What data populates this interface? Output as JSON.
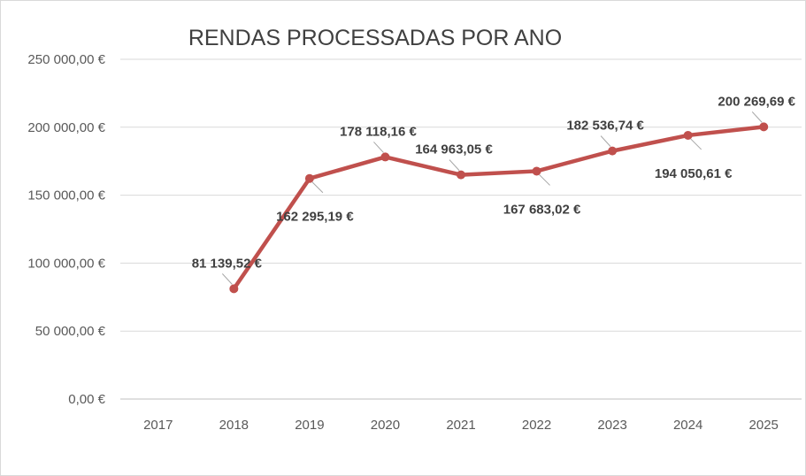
{
  "chart_data": {
    "type": "line",
    "title": "RENDAS PROCESSADAS POR ANO",
    "xlabel": "",
    "ylabel": "",
    "categories": [
      "2017",
      "2018",
      "2019",
      "2020",
      "2021",
      "2022",
      "2023",
      "2024",
      "2025"
    ],
    "y_ticks": [
      "250 000,00 €",
      "200 000,00 €",
      "150 000,00 €",
      "100 000,00 €",
      "50 000,00 €",
      "0,00 €"
    ],
    "ylim": [
      0,
      250000
    ],
    "grid": true,
    "legend": "none",
    "series": [
      {
        "color": "#c0504d",
        "values": [
          null,
          81139.52,
          162295.19,
          178118.16,
          164963.05,
          167683.02,
          182536.74,
          194050.61,
          200269.69
        ],
        "labels": [
          "",
          "81 139,52 €",
          "162 295,19 €",
          "178 118,16 €",
          "164 963,05 €",
          "167 683,02 €",
          "182 536,74 €",
          "194 050,61 €",
          "200 269,69 €"
        ]
      }
    ]
  }
}
